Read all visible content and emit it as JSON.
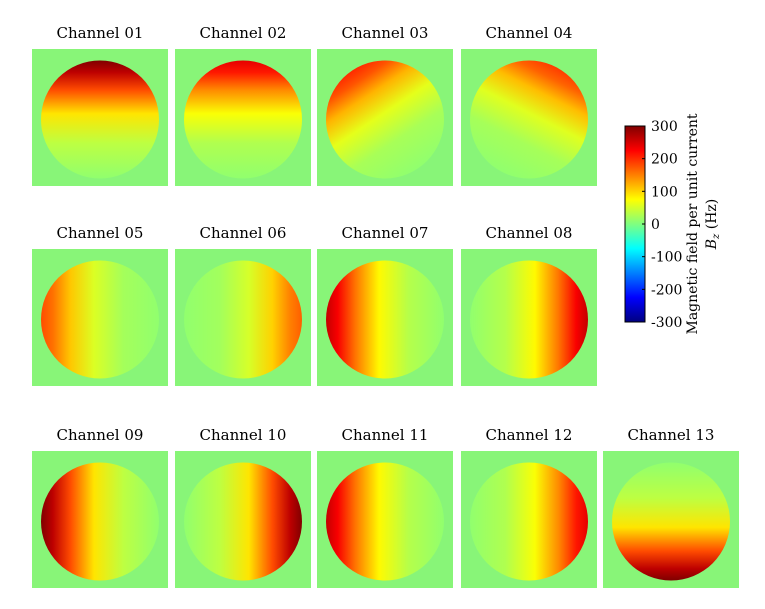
{
  "chart_data": {
    "type": "heatmap",
    "description_unit": "Hz",
    "panels": [
      {
        "title": "Channel 01",
        "pattern": "top",
        "peak": 300
      },
      {
        "title": "Channel 02",
        "pattern": "top",
        "peak": 240
      },
      {
        "title": "Channel 03",
        "pattern": "top-left",
        "peak": 200
      },
      {
        "title": "Channel 04",
        "pattern": "top-right",
        "peak": 190
      },
      {
        "title": "Channel 05",
        "pattern": "left",
        "peak": 180
      },
      {
        "title": "Channel 06",
        "pattern": "right",
        "peak": 170
      },
      {
        "title": "Channel 07",
        "pattern": "left",
        "peak": 260
      },
      {
        "title": "Channel 08",
        "pattern": "right",
        "peak": 260
      },
      {
        "title": "Channel 09",
        "pattern": "left",
        "peak": 300
      },
      {
        "title": "Channel 10",
        "pattern": "right",
        "peak": 300
      },
      {
        "title": "Channel 11",
        "pattern": "left",
        "peak": 260
      },
      {
        "title": "Channel 12",
        "pattern": "right",
        "peak": 240
      },
      {
        "title": "Channel 13",
        "pattern": "bottom",
        "peak": 300
      }
    ],
    "colorbar": {
      "colormap": "jet",
      "range": [
        -300,
        300
      ],
      "ticks": [
        "300",
        "200",
        "100",
        "0",
        "-100",
        "-200",
        "-300"
      ],
      "label_line1": "Magnetic field per unit current",
      "label_line2_symbol": "B",
      "label_line2_sub": "z",
      "label_line2_unit": " (Hz)"
    },
    "background_color": "#88f578"
  }
}
